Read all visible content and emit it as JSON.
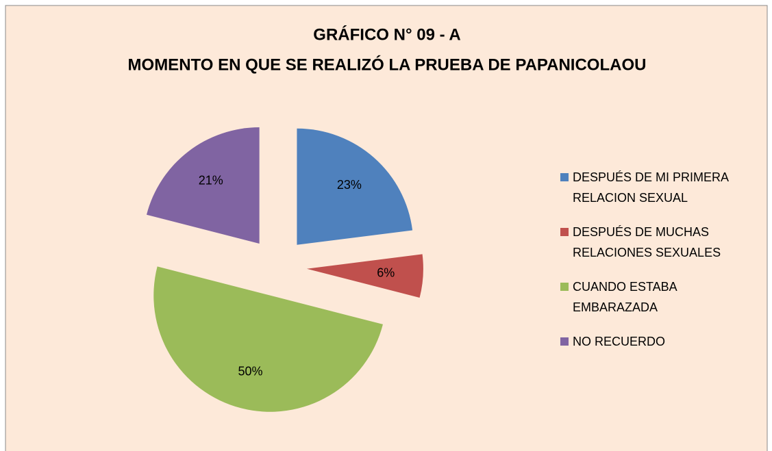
{
  "chart_data": {
    "type": "pie",
    "title": "GRÁFICO N° 09 - A",
    "subtitle": "MOMENTO EN QUE  SE REALIZÓ LA PRUEBA DE PAPANICOLAOU",
    "categories": [
      "DESPUÉS DE MI PRIMERA RELACION SEXUAL",
      "DESPUÉS DE MUCHAS RELACIONES SEXUALES",
      "CUANDO ESTABA EMBARAZADA",
      "NO RECUERDO"
    ],
    "values": [
      23,
      6,
      50,
      21
    ],
    "value_labels": [
      "23%",
      "6%",
      "50%",
      "21%"
    ],
    "colors": [
      "#4f81bd",
      "#c0504d",
      "#9bbb59",
      "#8064a2"
    ],
    "legend": "right"
  }
}
